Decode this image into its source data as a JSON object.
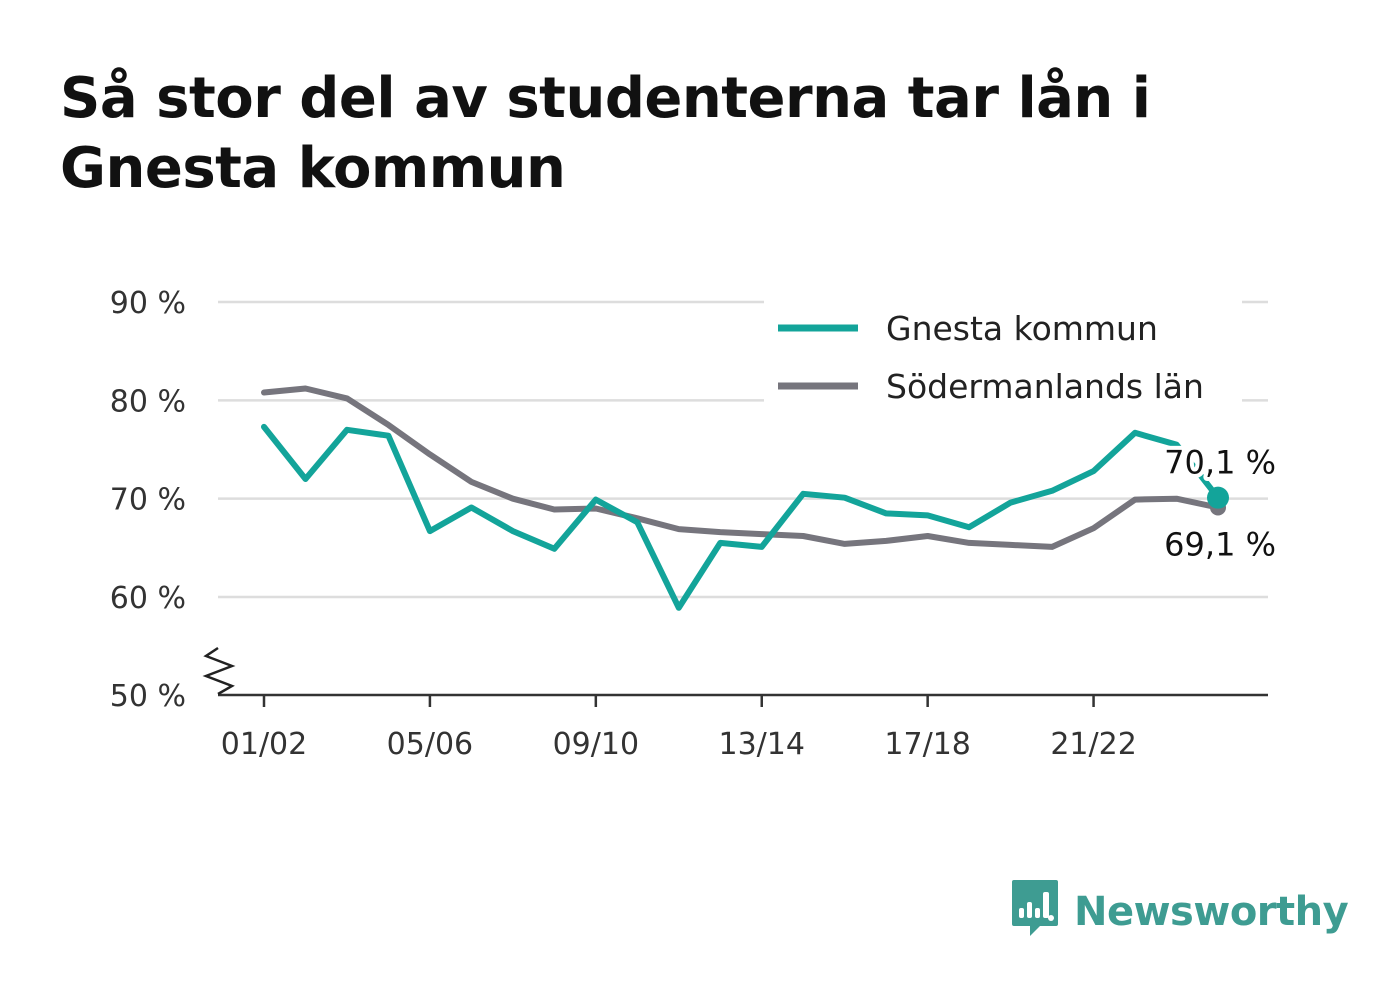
{
  "title": "Så stor del av studenterna tar lån i Gnesta kommun",
  "brand": {
    "name": "Newsworthy",
    "icon": "newsworthy-logo-icon",
    "color": "#3e9c92"
  },
  "chart_data": {
    "type": "line",
    "title": "Så stor del av studenterna tar lån i Gnesta kommun",
    "xlabel": "",
    "ylabel": "",
    "ylim": [
      50,
      90
    ],
    "y_ticks": [
      50,
      60,
      70,
      80,
      90
    ],
    "y_tick_labels": [
      "50 %",
      "60 %",
      "70 %",
      "80 %",
      "90 %"
    ],
    "y_axis_break": true,
    "grid": "horizontal",
    "legend_position": "top-right",
    "x": [
      "01/02",
      "02/03",
      "03/04",
      "04/05",
      "05/06",
      "06/07",
      "07/08",
      "08/09",
      "09/10",
      "10/11",
      "11/12",
      "12/13",
      "13/14",
      "14/15",
      "15/16",
      "16/17",
      "17/18",
      "18/19",
      "19/20",
      "20/21",
      "21/22",
      "22/23",
      "23/24",
      "24/25"
    ],
    "x_tick_labels": [
      "01/02",
      "05/06",
      "09/10",
      "13/14",
      "17/18",
      "21/22"
    ],
    "series": [
      {
        "name": "Gnesta kommun",
        "color": "#13a49a",
        "values": [
          77.3,
          72.0,
          77.0,
          76.4,
          66.7,
          69.1,
          66.7,
          64.9,
          69.9,
          67.6,
          58.9,
          65.5,
          65.1,
          70.5,
          70.1,
          68.5,
          68.3,
          67.1,
          69.6,
          70.8,
          72.8,
          76.7,
          75.5,
          70.1
        ],
        "end_label": "70,1 %"
      },
      {
        "name": "Södermanlands län",
        "color": "#76757d",
        "values": [
          80.8,
          81.2,
          80.2,
          77.5,
          74.5,
          71.7,
          70.0,
          68.9,
          69.0,
          68.0,
          66.9,
          66.6,
          66.4,
          66.2,
          65.4,
          65.7,
          66.2,
          65.5,
          65.3,
          65.1,
          67.0,
          69.9,
          70.0,
          69.1
        ],
        "end_label": "69,1 %"
      }
    ]
  }
}
